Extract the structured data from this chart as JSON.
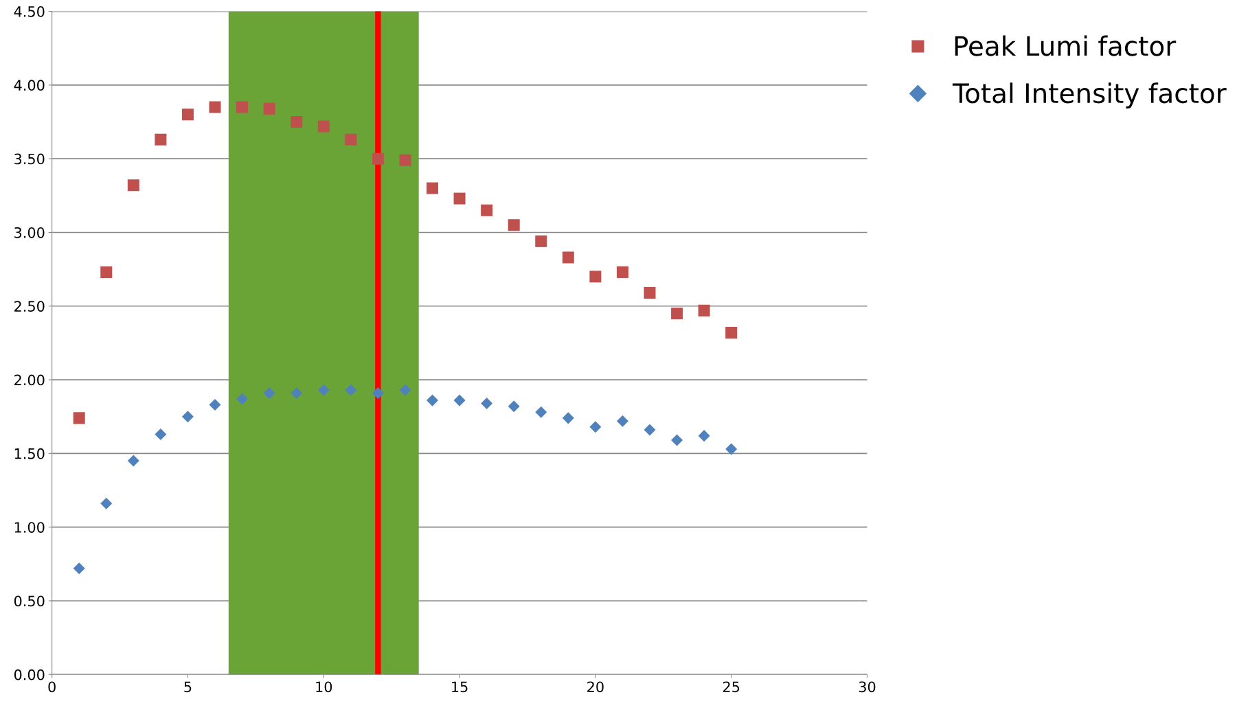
{
  "chart_data": {
    "type": "scatter",
    "x": [
      1,
      2,
      3,
      4,
      5,
      6,
      7,
      8,
      9,
      10,
      11,
      12,
      13,
      14,
      15,
      16,
      17,
      18,
      19,
      20,
      21,
      22,
      23,
      24,
      25
    ],
    "series": [
      {
        "name": "Peak Lumi factor",
        "color": "#c0504d",
        "marker": "square",
        "values": [
          1.74,
          2.73,
          3.32,
          3.63,
          3.8,
          3.85,
          3.85,
          3.84,
          3.75,
          3.72,
          3.63,
          3.5,
          3.49,
          3.3,
          3.23,
          3.15,
          3.05,
          2.94,
          2.83,
          2.7,
          2.73,
          2.59,
          2.45,
          2.47,
          2.32
        ]
      },
      {
        "name": "Total Intensity factor",
        "color": "#4f81bd",
        "marker": "diamond",
        "values": [
          0.72,
          1.16,
          1.45,
          1.63,
          1.75,
          1.83,
          1.87,
          1.91,
          1.91,
          1.93,
          1.93,
          1.91,
          1.93,
          1.86,
          1.86,
          1.84,
          1.82,
          1.78,
          1.74,
          1.68,
          1.72,
          1.66,
          1.59,
          1.62,
          1.53
        ]
      }
    ],
    "xlim": [
      0,
      30
    ],
    "xticks": [
      0,
      5,
      10,
      15,
      20,
      25,
      30
    ],
    "ylim": [
      0,
      4.5
    ],
    "yticks": [
      {
        "value": 0,
        "label": "0.00"
      },
      {
        "value": 0.5,
        "label": "0.50"
      },
      {
        "value": 1,
        "label": "1.00"
      },
      {
        "value": 1.5,
        "label": "1.50"
      },
      {
        "value": 2,
        "label": "2.00"
      },
      {
        "value": 2.5,
        "label": "2.50"
      },
      {
        "value": 3,
        "label": "3.00"
      },
      {
        "value": 3.5,
        "label": "3.50"
      },
      {
        "value": 4,
        "label": "4.00"
      },
      {
        "value": 4.5,
        "label": "4.50"
      }
    ],
    "bands": [
      {
        "axis": "x",
        "from": 6.5,
        "to": 13.5,
        "color": "#6aa436"
      }
    ],
    "ref_lines": [
      {
        "axis": "x",
        "value": 12,
        "color": "#ff0000"
      }
    ],
    "grid": "y",
    "legend": "top right"
  }
}
